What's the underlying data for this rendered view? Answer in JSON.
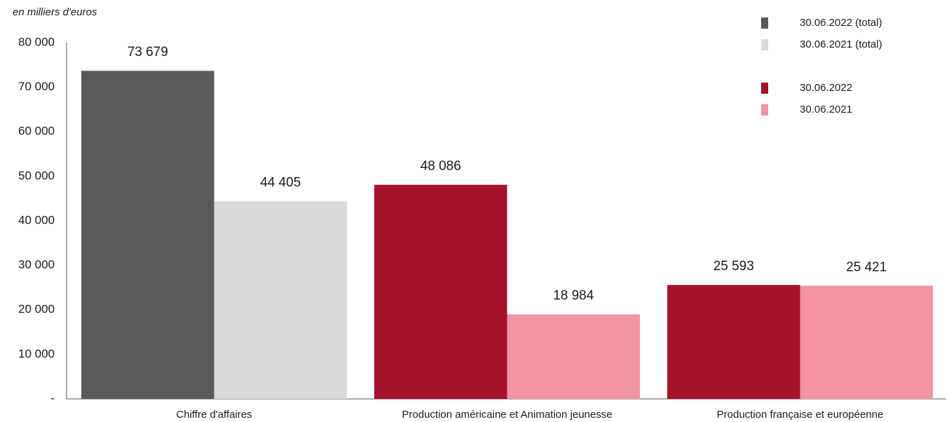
{
  "chart_data": {
    "type": "bar",
    "subtitle": "en milliers d'euros",
    "categories": [
      "Chiffre d'affaires",
      "Production américaine et Animation jeunesse",
      "Production française et européenne"
    ],
    "series": [
      {
        "name": "30.06.2022 (total)",
        "color": "#595959",
        "values": [
          73679,
          null,
          null
        ],
        "value_labels": [
          "73 679",
          null,
          null
        ]
      },
      {
        "name": "30.06.2021 (total)",
        "color": "#d9d9d9",
        "values": [
          44405,
          null,
          null
        ],
        "value_labels": [
          "44 405",
          null,
          null
        ]
      },
      {
        "name": "30.06.2022",
        "color": "#a6122c",
        "values": [
          null,
          48086,
          25593
        ],
        "value_labels": [
          null,
          "48 086",
          "25 593"
        ]
      },
      {
        "name": "30.06.2021",
        "color": "#f294a3",
        "values": [
          null,
          18984,
          25421
        ],
        "value_labels": [
          null,
          "18 984",
          "25 421"
        ]
      }
    ],
    "ylim": [
      0,
      80000
    ],
    "yticks": [
      {
        "value": 0,
        "label": "-"
      },
      {
        "value": 10000,
        "label": "10 000"
      },
      {
        "value": 20000,
        "label": "20 000"
      },
      {
        "value": 30000,
        "label": "30 000"
      },
      {
        "value": 40000,
        "label": "40 000"
      },
      {
        "value": 50000,
        "label": "50 000"
      },
      {
        "value": 60000,
        "label": "60 000"
      },
      {
        "value": 70000,
        "label": "70 000"
      },
      {
        "value": 80000,
        "label": "80 000"
      }
    ],
    "grid": false,
    "legend": "top-right"
  }
}
